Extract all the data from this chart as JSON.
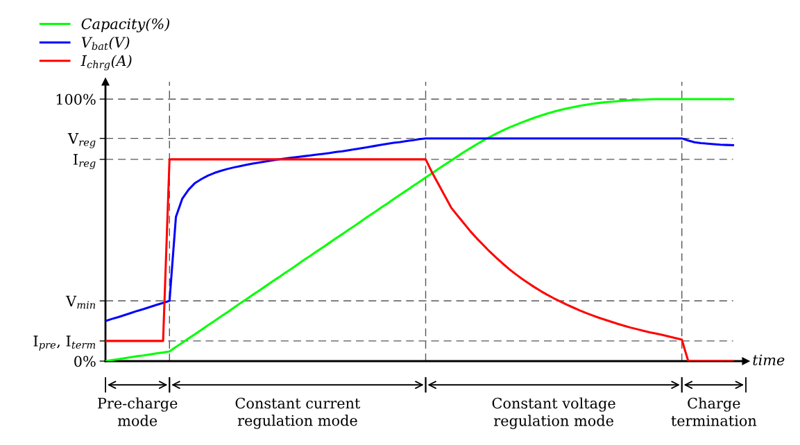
{
  "chart_data": {
    "type": "line",
    "xlabel": "time",
    "categories": [
      null,
      null,
      null,
      null,
      null,
      null,
      null,
      null,
      null,
      null,
      null,
      null,
      null,
      null,
      null,
      null,
      null,
      null,
      null,
      null,
      null,
      null,
      null,
      null,
      null,
      null,
      null,
      null,
      null,
      null,
      null,
      null,
      null,
      null,
      null,
      null,
      null,
      null,
      null,
      null,
      null,
      null,
      null,
      null,
      null,
      null,
      null,
      null,
      null,
      null,
      null,
      null,
      null,
      null,
      null,
      null,
      null,
      null,
      null,
      null,
      null,
      null,
      null,
      null,
      null,
      null,
      null,
      null,
      null,
      null,
      null,
      null,
      null,
      null,
      null,
      null,
      null,
      null,
      null,
      null,
      null,
      null,
      null,
      null,
      null,
      null,
      null,
      null,
      null,
      null,
      null,
      null,
      null,
      null,
      null,
      null,
      null,
      null,
      null
    ],
    "series": [
      {
        "name": "Capacity(%)",
        "color": "#00ff00",
        "values": [
          0,
          0.4,
          0.7,
          1.1,
          1.5,
          1.9,
          2.2,
          2.6,
          3.0,
          3.3,
          3.7,
          5.4,
          7.0,
          8.7,
          10.3,
          12.0,
          13.7,
          15.3,
          17.0,
          18.6,
          20.3,
          22.0,
          23.6,
          25.3,
          26.9,
          28.6,
          30.3,
          31.9,
          33.6,
          35.2,
          36.9,
          38.6,
          40.2,
          41.9,
          43.5,
          45.2,
          46.9,
          48.5,
          50.2,
          51.8,
          53.5,
          55.2,
          56.8,
          58.5,
          60.1,
          61.8,
          63.5,
          65.1,
          66.8,
          68.4,
          70.1,
          71.7,
          73.4,
          75.0,
          76.6,
          78.2,
          79.8,
          81.3,
          82.8,
          84.2,
          85.5,
          86.8,
          88.0,
          89.1,
          90.1,
          91.1,
          92.0,
          92.9,
          93.7,
          94.5,
          95.2,
          95.8,
          96.4,
          96.9,
          97.4,
          97.8,
          98.2,
          98.5,
          98.8,
          99.0,
          99.2,
          99.4,
          99.6,
          99.7,
          99.8,
          99.9,
          100,
          100,
          100,
          100,
          100,
          100,
          100,
          100,
          100,
          100,
          100,
          100,
          100
        ]
      },
      {
        "name": "V$_{bat}$(V)",
        "color": "#0000ff",
        "values": [
          15.3,
          16.1,
          16.8,
          17.6,
          18.4,
          19.2,
          19.9,
          20.7,
          21.5,
          22.2,
          23.0,
          55,
          62,
          65.5,
          68,
          69.5,
          70.8,
          71.8,
          72.6,
          73.3,
          73.9,
          74.4,
          74.9,
          75.4,
          75.8,
          76.2,
          76.6,
          77.0,
          77.3,
          77.6,
          77.9,
          78.2,
          78.5,
          78.8,
          79.1,
          79.4,
          79.8,
          80.1,
          80.5,
          80.9,
          81.3,
          81.7,
          82.1,
          82.5,
          82.9,
          83.3,
          83.6,
          84.0,
          84.3,
          84.7,
          85,
          85,
          85,
          85,
          85,
          85,
          85,
          85,
          85,
          85,
          85,
          85,
          85,
          85,
          85,
          85,
          85,
          85,
          85,
          85,
          85,
          85,
          85,
          85,
          85,
          85,
          85,
          85,
          85,
          85,
          85,
          85,
          85,
          85,
          85,
          85,
          85,
          85,
          85,
          85,
          85,
          84.2,
          83.5,
          83.2,
          83.0,
          82.8,
          82.6,
          82.5,
          82.4
        ]
      },
      {
        "name": "I$_{chrg}$(A)",
        "color": "#ff0000",
        "values": [
          7.7,
          7.7,
          7.7,
          7.7,
          7.7,
          7.7,
          7.7,
          7.7,
          7.7,
          7.7,
          77,
          77,
          77,
          77,
          77,
          77,
          77,
          77,
          77,
          77,
          77,
          77,
          77,
          77,
          77,
          77,
          77,
          77,
          77,
          77,
          77,
          77,
          77,
          77,
          77,
          77,
          77,
          77,
          77,
          77,
          77,
          77,
          77,
          77,
          77,
          77,
          77,
          77,
          77,
          77,
          77,
          72,
          67.5,
          63,
          58.5,
          55.5,
          52.5,
          49.5,
          46.8,
          44.3,
          41.8,
          39.5,
          37.3,
          35.2,
          33.3,
          31.5,
          29.8,
          28.2,
          26.7,
          25.3,
          24,
          22.8,
          21.6,
          20.5,
          19.4,
          18.4,
          17.5,
          16.6,
          15.8,
          15.0,
          14.2,
          13.5,
          12.8,
          12.2,
          11.6,
          11.0,
          10.5,
          10.0,
          9.4,
          8.8,
          8.2,
          0,
          0,
          0,
          0,
          0,
          0,
          0,
          0
        ]
      }
    ],
    "ylim": [
      0,
      106.6
    ],
    "yticks": [
      {
        "value": 0,
        "label": "0%"
      },
      {
        "value": 7.7,
        "label": "I$_{pre}$, I$_{term}$"
      },
      {
        "value": 23,
        "label": "V$_{min}$"
      },
      {
        "value": 77,
        "label": "I$_{reg}$"
      },
      {
        "value": 85,
        "label": "V$_{reg}$"
      },
      {
        "value": 100,
        "label": "100%"
      }
    ],
    "tick_labels": "y",
    "annotations": [
      "Pre-charge\nmode",
      "Constant current\nregulation mode",
      "Constant voltage\nregulation mode",
      "Charge\ntermination"
    ],
    "ref_lines": [
      {
        "axis": "y",
        "value": 100,
        "color": "#555555",
        "line_style": "dashed"
      },
      {
        "axis": "y",
        "value": 85,
        "color": "#555555",
        "line_style": "dashed"
      },
      {
        "axis": "y",
        "value": 77,
        "color": "#555555",
        "line_style": "dashed"
      },
      {
        "axis": "y",
        "value": 23,
        "color": "#555555",
        "line_style": "dashed"
      },
      {
        "axis": "y",
        "value": 7.7,
        "color": "#555555",
        "line_style": "dashed"
      }
    ],
    "legend": "top left",
    "grid": "x",
    "line_style": "solid",
    "marker": "none"
  }
}
